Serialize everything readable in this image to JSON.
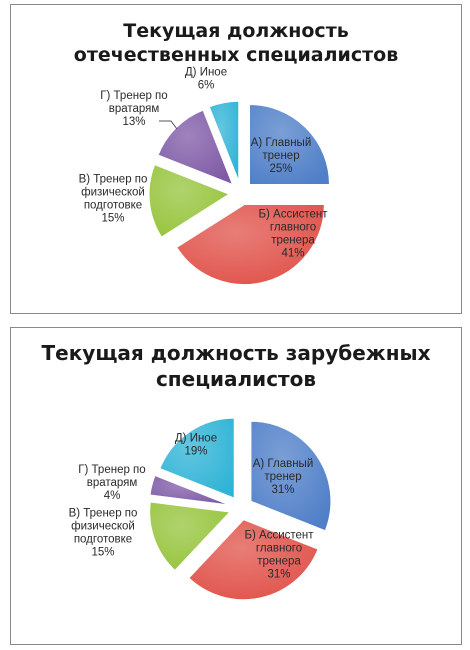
{
  "chart_data": [
    {
      "type": "pie",
      "title": "Текущая должность\nотечественных специалистов",
      "slices": [
        {
          "label": "А) Главный тренер",
          "lines": [
            "А) Главный",
            "тренер",
            "25%"
          ],
          "value": 25,
          "color": "#4f7fc8"
        },
        {
          "label": "Б) Ассистент главного тренера",
          "lines": [
            "Б) Ассистент",
            "главного",
            "тренера",
            "41%"
          ],
          "value": 41,
          "color": "#e0524a"
        },
        {
          "label": "В) Тренер по физической подготовке",
          "lines": [
            "В) Тренер по",
            "физической",
            "подготовке",
            "15%"
          ],
          "value": 15,
          "color": "#96c43c"
        },
        {
          "label": "Г) Тренер по вратарям",
          "lines": [
            "Г) Тренер по",
            "вратарям",
            "13%"
          ],
          "value": 13,
          "color": "#7e5aa6"
        },
        {
          "label": "Д) Иное",
          "lines": [
            "Д) Иное",
            "6%"
          ],
          "value": 6,
          "color": "#2fb3d6"
        }
      ]
    },
    {
      "type": "pie",
      "title": "Текущая должность зарубежных\nспециалистов",
      "slices": [
        {
          "label": "А) Главный тренер",
          "lines": [
            "А) Главный",
            "тренер",
            "31%"
          ],
          "value": 31,
          "color": "#4f7fc8"
        },
        {
          "label": "Б) Ассистент главного тренера",
          "lines": [
            "Б) Ассистент",
            "главного",
            "тренера",
            "31%"
          ],
          "value": 31,
          "color": "#e0524a"
        },
        {
          "label": "В) Тренер по физической подготовке",
          "lines": [
            "В) Тренер по",
            "физической",
            "подготовке",
            "15%"
          ],
          "value": 15,
          "color": "#96c43c"
        },
        {
          "label": "Г) Тренер по вратарям",
          "lines": [
            "Г) Тренер по",
            "вратарям",
            "4%"
          ],
          "value": 4,
          "color": "#7e5aa6"
        },
        {
          "label": "Д) Иное",
          "lines": [
            "Д) Иное",
            "19%"
          ],
          "value": 19,
          "color": "#2fb3d6"
        }
      ]
    }
  ]
}
